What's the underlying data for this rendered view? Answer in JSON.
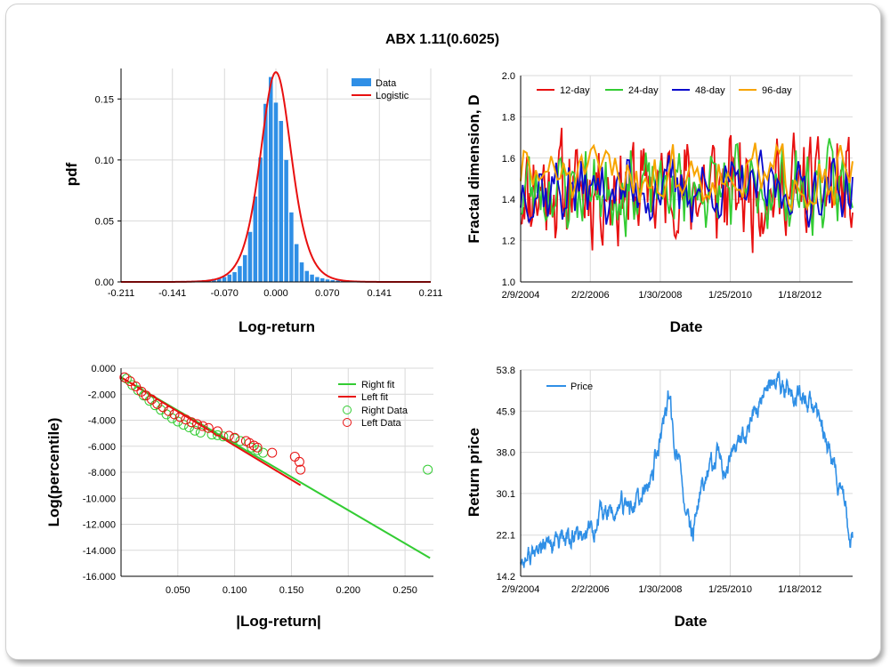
{
  "figure": {
    "title": "ABX 1.11(0.6025)"
  },
  "colors": {
    "blue": "#2f8fe6",
    "red": "#e81010",
    "green": "#33cc33",
    "navy": "#0a0acc",
    "orange": "#f7a400"
  },
  "chart_data": [
    {
      "type": "bar",
      "id": "pdf",
      "xlabel": "Log-return",
      "ylabel": "pdf",
      "xlim": [
        -0.211,
        0.211
      ],
      "ylim": [
        0,
        0.175
      ],
      "xticks": [
        "-0.211",
        "-0.141",
        "-0.070",
        "0.000",
        "0.070",
        "0.141",
        "0.211"
      ],
      "yticks": [
        "0.00",
        "0.05",
        "0.10",
        "0.15"
      ],
      "legend": [
        "Data",
        "Logistic"
      ],
      "legend_position": "top-right",
      "bin_width": 0.00703,
      "bins_x": [
        -0.1617,
        -0.1547,
        -0.1477,
        -0.1406,
        -0.1336,
        -0.1266,
        -0.1195,
        -0.1125,
        -0.1055,
        -0.0984,
        -0.0914,
        -0.0844,
        -0.0773,
        -0.0703,
        -0.0633,
        -0.0563,
        -0.0492,
        -0.0422,
        -0.0352,
        -0.0281,
        -0.0211,
        -0.0141,
        -0.007,
        0.0,
        0.007,
        0.0141,
        0.0211,
        0.0281,
        0.0352,
        0.0422,
        0.0492,
        0.0563,
        0.0633,
        0.0703,
        0.0773,
        0.0844,
        0.0914,
        0.0984,
        0.1055,
        0.1125,
        0.1195,
        0.1266
      ],
      "bins_y": [
        0.0003,
        0.0003,
        0.0005,
        0.0005,
        0.0006,
        0.0008,
        0.0008,
        0.001,
        0.0012,
        0.0015,
        0.0018,
        0.0025,
        0.003,
        0.004,
        0.006,
        0.008,
        0.013,
        0.022,
        0.041,
        0.07,
        0.102,
        0.146,
        0.168,
        0.147,
        0.132,
        0.1,
        0.057,
        0.031,
        0.016,
        0.009,
        0.006,
        0.004,
        0.003,
        0.002,
        0.0015,
        0.0012,
        0.001,
        0.0008,
        0.0008,
        0.0006,
        0.0005,
        0.0004
      ],
      "fit": {
        "name": "Logistic",
        "mu": 0.0,
        "s": 0.0143
      }
    },
    {
      "type": "line",
      "id": "fractal",
      "xlabel": "Date",
      "ylabel": "Fractal dimension, D",
      "xlim_years": [
        2004.11,
        2013.55
      ],
      "ylim": [
        1.0,
        2.0
      ],
      "xticks": [
        "2/9/2004",
        "2/2/2006",
        "1/30/2008",
        "1/25/2010",
        "1/18/2012"
      ],
      "xtick_years": [
        2004.11,
        2006.09,
        2008.08,
        2010.07,
        2012.05
      ],
      "yticks": [
        "1.0",
        "1.2",
        "1.4",
        "1.6",
        "1.8",
        "2.0"
      ],
      "legend_position": "top",
      "series": [
        {
          "name": "12-day",
          "color": "red",
          "mean": 1.45,
          "amp": 0.22,
          "period_days": 10,
          "seed": 11,
          "points": 260
        },
        {
          "name": "24-day",
          "color": "green",
          "mean": 1.45,
          "amp": 0.17,
          "period_days": 20,
          "seed": 23,
          "points": 200
        },
        {
          "name": "48-day",
          "color": "navy",
          "mean": 1.45,
          "amp": 0.14,
          "period_days": 40,
          "seed": 37,
          "points": 160
        },
        {
          "name": "96-day",
          "color": "orange",
          "mean": 1.52,
          "amp": 0.13,
          "period_days": 80,
          "seed": 51,
          "points": 110
        }
      ]
    },
    {
      "type": "scatter",
      "id": "tails",
      "xlabel": "|Log-return|",
      "ylabel": "Log(percentile)",
      "xlim": [
        0.0,
        0.275
      ],
      "ylim": [
        -16.0,
        0.0
      ],
      "xticks": [
        "0.050",
        "0.100",
        "0.150",
        "0.200",
        "0.250"
      ],
      "xtick_values": [
        0.05,
        0.1,
        0.15,
        0.2,
        0.25
      ],
      "yticks": [
        "0.000",
        "-2.000",
        "-4.000",
        "-6.000",
        "-8.000",
        "-10.000",
        "-12.000",
        "-14.000",
        "-16.000"
      ],
      "legend": [
        "Right fit",
        "Left fit",
        "Right Data",
        "Left Data"
      ],
      "legend_position": "top-right",
      "right_fit": {
        "x": [
          0.0,
          0.272
        ],
        "y": [
          -0.7,
          -14.6
        ]
      },
      "left_fit": {
        "x": [
          0.0,
          0.158
        ],
        "y": [
          -0.7,
          -9.0
        ]
      },
      "right_data": [
        [
          0.005,
          -0.8
        ],
        [
          0.01,
          -1.3
        ],
        [
          0.015,
          -1.7
        ],
        [
          0.02,
          -2.1
        ],
        [
          0.025,
          -2.5
        ],
        [
          0.03,
          -2.85
        ],
        [
          0.035,
          -3.2
        ],
        [
          0.04,
          -3.55
        ],
        [
          0.045,
          -3.85
        ],
        [
          0.05,
          -4.1
        ],
        [
          0.055,
          -4.35
        ],
        [
          0.06,
          -4.55
        ],
        [
          0.065,
          -4.8
        ],
        [
          0.07,
          -4.95
        ],
        [
          0.08,
          -5.1
        ],
        [
          0.085,
          -5.15
        ],
        [
          0.09,
          -5.25
        ],
        [
          0.1,
          -5.4
        ],
        [
          0.105,
          -5.6
        ],
        [
          0.115,
          -6.1
        ],
        [
          0.12,
          -6.3
        ],
        [
          0.125,
          -6.5
        ],
        [
          0.27,
          -7.8
        ]
      ],
      "left_data": [
        [
          0.003,
          -0.7
        ],
        [
          0.008,
          -1.0
        ],
        [
          0.013,
          -1.4
        ],
        [
          0.018,
          -1.8
        ],
        [
          0.022,
          -2.1
        ],
        [
          0.027,
          -2.4
        ],
        [
          0.032,
          -2.75
        ],
        [
          0.037,
          -3.0
        ],
        [
          0.042,
          -3.3
        ],
        [
          0.047,
          -3.55
        ],
        [
          0.052,
          -3.75
        ],
        [
          0.057,
          -3.95
        ],
        [
          0.062,
          -4.15
        ],
        [
          0.067,
          -4.3
        ],
        [
          0.072,
          -4.45
        ],
        [
          0.077,
          -4.6
        ],
        [
          0.085,
          -4.85
        ],
        [
          0.095,
          -5.2
        ],
        [
          0.1,
          -5.35
        ],
        [
          0.11,
          -5.6
        ],
        [
          0.113,
          -5.75
        ],
        [
          0.117,
          -5.95
        ],
        [
          0.12,
          -6.1
        ],
        [
          0.133,
          -6.5
        ],
        [
          0.153,
          -6.8
        ],
        [
          0.157,
          -7.2
        ],
        [
          0.158,
          -7.8
        ]
      ]
    },
    {
      "type": "line",
      "id": "price",
      "xlabel": "Date",
      "ylabel": "Return price",
      "xlim_years": [
        2004.11,
        2013.55
      ],
      "ylim": [
        14.2,
        53.8
      ],
      "xticks": [
        "2/9/2004",
        "2/2/2006",
        "1/30/2008",
        "1/25/2010",
        "1/18/2012"
      ],
      "xtick_years": [
        2004.11,
        2006.09,
        2008.08,
        2010.07,
        2012.05
      ],
      "yticks": [
        "14.2",
        "22.1",
        "30.1",
        "38.0",
        "45.9",
        "53.8"
      ],
      "legend": [
        "Price"
      ],
      "legend_position": "top-left",
      "anchors": [
        [
          2004.11,
          17.5
        ],
        [
          2004.6,
          18.5
        ],
        [
          2005.0,
          20.0
        ],
        [
          2005.5,
          21.0
        ],
        [
          2006.0,
          23.0
        ],
        [
          2006.4,
          25.0
        ],
        [
          2006.8,
          27.0
        ],
        [
          2007.2,
          27.5
        ],
        [
          2007.5,
          28.0
        ],
        [
          2007.75,
          31.0
        ],
        [
          2008.0,
          38.0
        ],
        [
          2008.3,
          48.0
        ],
        [
          2008.6,
          36.0
        ],
        [
          2008.8,
          27.0
        ],
        [
          2009.0,
          20.0
        ],
        [
          2009.2,
          30.0
        ],
        [
          2009.6,
          36.0
        ],
        [
          2010.0,
          35.0
        ],
        [
          2010.4,
          40.0
        ],
        [
          2010.8,
          45.0
        ],
        [
          2011.0,
          48.0
        ],
        [
          2011.4,
          52.5
        ],
        [
          2011.8,
          50.0
        ],
        [
          2012.2,
          48.0
        ],
        [
          2012.5,
          44.0
        ],
        [
          2012.8,
          40.0
        ],
        [
          2013.1,
          34.0
        ],
        [
          2013.35,
          28.0
        ],
        [
          2013.45,
          18.0
        ],
        [
          2013.55,
          20.5
        ]
      ],
      "volatility": 1.2,
      "seed": 77
    }
  ]
}
